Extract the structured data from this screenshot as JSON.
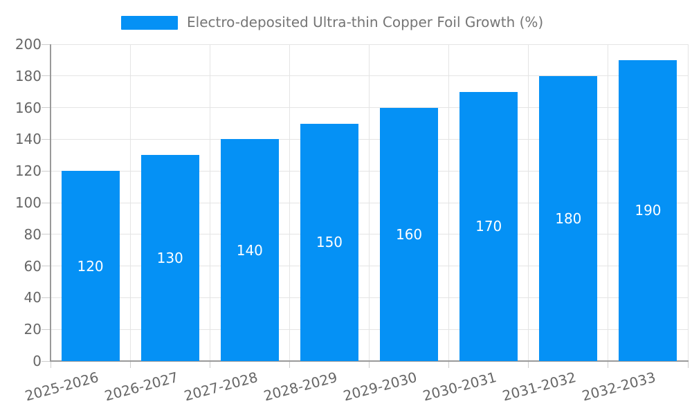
{
  "legend": {
    "label": "Electro-deposited Ultra-thin Copper Foil Growth (%)",
    "swatch_color": "#0591f5"
  },
  "chart_data": {
    "type": "bar",
    "title": "Electro-deposited Ultra-thin Copper Foil Growth (%)",
    "categories": [
      "2025-2026",
      "2026-2027",
      "2027-2028",
      "2028-2029",
      "2029-2030",
      "2030-2031",
      "2031-2032",
      "2032-2033"
    ],
    "values": [
      120,
      130,
      140,
      150,
      160,
      170,
      180,
      190
    ],
    "xlabel": "",
    "ylabel": "",
    "ylim": [
      0,
      200
    ],
    "yticks": [
      0,
      20,
      40,
      60,
      80,
      100,
      120,
      140,
      160,
      180,
      200
    ],
    "grid": true,
    "legend_position": "top-center",
    "bar_color": "#0591f5",
    "value_label_color": "#ffffff",
    "grid_color": "#e4e4e4",
    "axis_color": "#999999",
    "tick_color": "#cccccc",
    "tick_text_color": "#666666",
    "x_label_rotation_deg": -15
  }
}
